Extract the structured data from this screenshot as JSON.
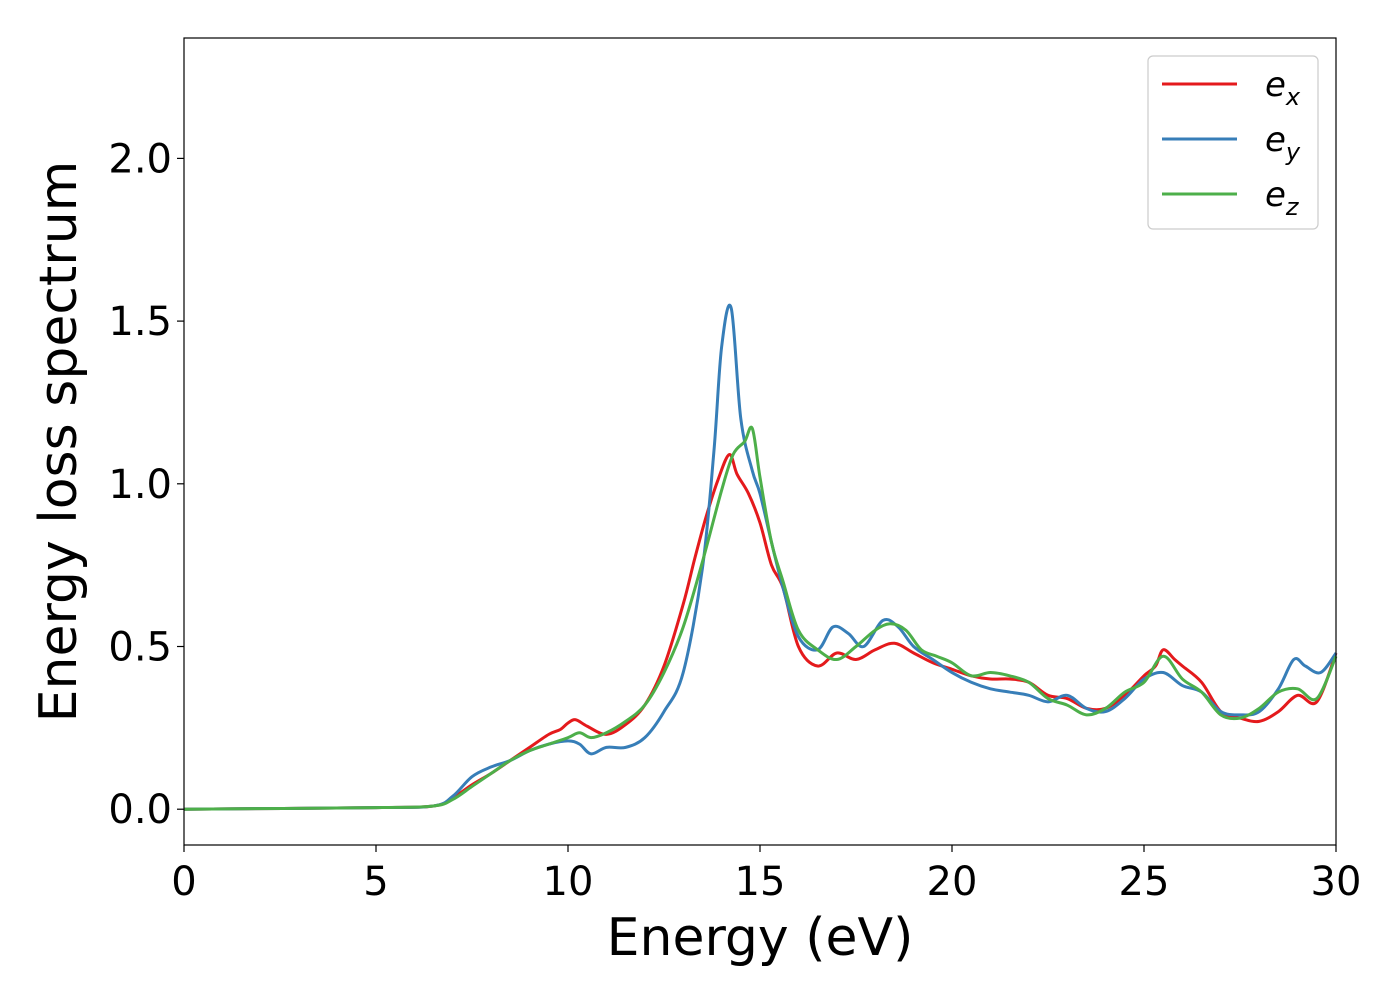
{
  "chart_data": {
    "type": "line",
    "xlabel": "Energy (eV)",
    "ylabel": "Energy loss spectrum",
    "xlim": [
      0,
      30
    ],
    "ylim": [
      -0.11,
      2.37
    ],
    "xticks": [
      0,
      5,
      10,
      15,
      20,
      25,
      30
    ],
    "xtick_labels": [
      "0",
      "5",
      "10",
      "15",
      "20",
      "25",
      "30"
    ],
    "yticks": [
      0.0,
      0.5,
      1.0,
      1.5,
      2.0
    ],
    "ytick_labels": [
      "0.0",
      "0.5",
      "1.0",
      "1.5",
      "2.0"
    ],
    "grid": false,
    "legend_position": "top-right",
    "series": [
      {
        "name": "e",
        "subscript": "x",
        "color": "#e41a1c",
        "x": [
          0,
          5,
          6.5,
          7.0,
          7.5,
          8.0,
          8.5,
          9.0,
          9.5,
          9.8,
          10.0,
          10.2,
          10.5,
          11.0,
          11.5,
          12.0,
          12.5,
          13.0,
          13.3,
          13.6,
          13.9,
          14.2,
          14.4,
          14.7,
          15.0,
          15.3,
          15.6,
          16.0,
          16.5,
          17.0,
          17.5,
          18.0,
          18.5,
          19.0,
          19.5,
          20.0,
          20.5,
          21.0,
          21.5,
          22.0,
          22.5,
          23.0,
          23.5,
          24.0,
          24.5,
          25.0,
          25.3,
          25.5,
          25.8,
          26.0,
          26.5,
          27.0,
          27.5,
          28.0,
          28.5,
          29.0,
          29.5,
          30.0
        ],
        "y": [
          0.0,
          0.005,
          0.01,
          0.035,
          0.075,
          0.11,
          0.15,
          0.19,
          0.23,
          0.245,
          0.265,
          0.275,
          0.255,
          0.23,
          0.26,
          0.32,
          0.44,
          0.63,
          0.77,
          0.9,
          1.01,
          1.09,
          1.03,
          0.97,
          0.88,
          0.75,
          0.68,
          0.5,
          0.44,
          0.48,
          0.46,
          0.49,
          0.51,
          0.48,
          0.45,
          0.43,
          0.41,
          0.4,
          0.4,
          0.39,
          0.35,
          0.34,
          0.31,
          0.31,
          0.35,
          0.41,
          0.44,
          0.49,
          0.46,
          0.44,
          0.39,
          0.3,
          0.28,
          0.27,
          0.3,
          0.35,
          0.33,
          0.48
        ]
      },
      {
        "name": "e",
        "subscript": "y",
        "color": "#377eb8",
        "x": [
          0,
          5,
          6.5,
          7.0,
          7.5,
          8.0,
          8.5,
          9.0,
          9.5,
          10.0,
          10.3,
          10.6,
          11.0,
          11.5,
          12.0,
          12.5,
          13.0,
          13.5,
          13.8,
          14.0,
          14.25,
          14.5,
          14.8,
          15.0,
          15.3,
          15.6,
          16.0,
          16.5,
          16.9,
          17.3,
          17.7,
          18.2,
          18.6,
          19.0,
          19.5,
          20.0,
          20.5,
          21.0,
          21.5,
          22.0,
          22.5,
          23.0,
          23.5,
          24.0,
          24.5,
          25.0,
          25.5,
          26.0,
          26.5,
          27.0,
          27.5,
          28.0,
          28.5,
          28.9,
          29.2,
          29.6,
          30.0
        ],
        "y": [
          0.0,
          0.005,
          0.01,
          0.04,
          0.1,
          0.13,
          0.15,
          0.18,
          0.2,
          0.21,
          0.2,
          0.17,
          0.19,
          0.19,
          0.22,
          0.3,
          0.42,
          0.74,
          1.1,
          1.42,
          1.54,
          1.2,
          1.04,
          0.97,
          0.82,
          0.68,
          0.53,
          0.49,
          0.56,
          0.54,
          0.5,
          0.58,
          0.56,
          0.5,
          0.46,
          0.42,
          0.39,
          0.37,
          0.36,
          0.35,
          0.33,
          0.35,
          0.31,
          0.3,
          0.34,
          0.4,
          0.42,
          0.38,
          0.36,
          0.3,
          0.29,
          0.3,
          0.37,
          0.46,
          0.44,
          0.42,
          0.48
        ]
      },
      {
        "name": "e",
        "subscript": "z",
        "color": "#4daf4a",
        "x": [
          0,
          5,
          6.5,
          7.0,
          7.5,
          8.0,
          8.5,
          9.0,
          9.5,
          10.0,
          10.3,
          10.6,
          11.0,
          11.5,
          12.0,
          12.5,
          13.0,
          13.5,
          14.0,
          14.3,
          14.6,
          14.8,
          15.0,
          15.3,
          15.6,
          16.0,
          16.5,
          17.0,
          17.5,
          18.0,
          18.4,
          18.8,
          19.2,
          19.6,
          20.0,
          20.5,
          21.0,
          21.5,
          22.0,
          22.5,
          23.0,
          23.5,
          24.0,
          24.5,
          25.0,
          25.5,
          26.0,
          26.5,
          27.0,
          27.5,
          28.0,
          28.5,
          29.0,
          29.5,
          30.0
        ],
        "y": [
          0.0,
          0.005,
          0.01,
          0.03,
          0.07,
          0.11,
          0.15,
          0.18,
          0.2,
          0.22,
          0.235,
          0.22,
          0.235,
          0.27,
          0.32,
          0.42,
          0.56,
          0.76,
          0.98,
          1.09,
          1.13,
          1.17,
          1.02,
          0.82,
          0.7,
          0.55,
          0.49,
          0.46,
          0.5,
          0.55,
          0.57,
          0.55,
          0.49,
          0.47,
          0.45,
          0.41,
          0.42,
          0.41,
          0.39,
          0.34,
          0.32,
          0.29,
          0.31,
          0.36,
          0.39,
          0.47,
          0.4,
          0.36,
          0.29,
          0.28,
          0.31,
          0.36,
          0.37,
          0.34,
          0.47
        ]
      }
    ]
  }
}
